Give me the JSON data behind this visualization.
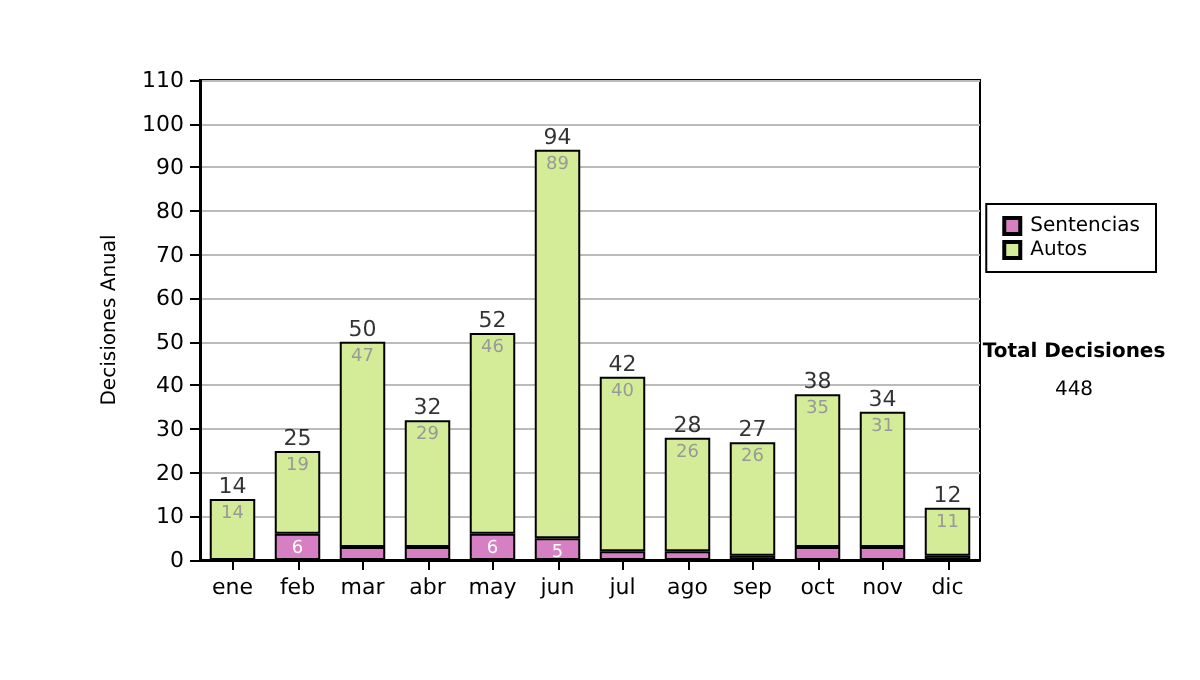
{
  "chart_data": {
    "type": "bar",
    "stacked": true,
    "ylabel": "Decisiones Anual",
    "categories": [
      "ene",
      "feb",
      "mar",
      "abr",
      "may",
      "jun",
      "jul",
      "ago",
      "sep",
      "oct",
      "nov",
      "dic"
    ],
    "series": [
      {
        "name": "Sentencias",
        "color": "#d77fc3",
        "values": [
          0,
          6,
          3,
          3,
          6,
          5,
          2,
          2,
          1,
          3,
          3,
          1
        ],
        "value_labels": [
          null,
          "6",
          null,
          null,
          "6",
          "5",
          null,
          null,
          null,
          null,
          null,
          null
        ]
      },
      {
        "name": "Autos",
        "color": "#d4ec98",
        "values": [
          14,
          19,
          47,
          29,
          46,
          89,
          40,
          26,
          26,
          35,
          31,
          11
        ],
        "value_labels": [
          "14",
          "19",
          "47",
          "29",
          "46",
          "89",
          "40",
          "26",
          "26",
          "35",
          "31",
          "11"
        ]
      }
    ],
    "totals": [
      "14",
      "25",
      "50",
      "32",
      "52",
      "94",
      "42",
      "28",
      "27",
      "38",
      "34",
      "12"
    ],
    "ylim": [
      0,
      110
    ],
    "yticks": [
      0,
      10,
      20,
      30,
      40,
      50,
      60,
      70,
      80,
      90,
      100,
      110
    ],
    "grid": "y",
    "legend": "right",
    "annotations": [
      "Total Decisiones",
      "448"
    ]
  }
}
